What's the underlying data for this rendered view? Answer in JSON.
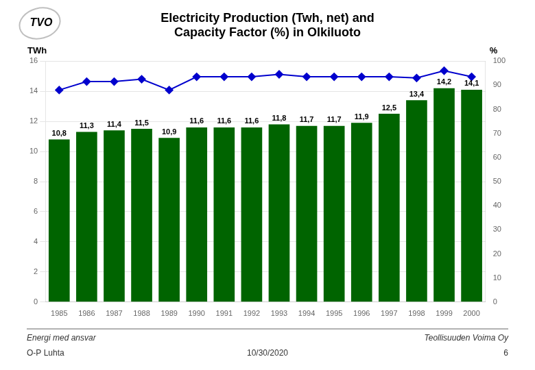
{
  "chart_data": {
    "type": "bar",
    "title": [
      "Electricity Production (Twh, net) and",
      "Capacity Factor (%) in Olkiluoto"
    ],
    "categories": [
      "1985",
      "1986",
      "1987",
      "1988",
      "1989",
      "1990",
      "1991",
      "1992",
      "1993",
      "1994",
      "1995",
      "1996",
      "1997",
      "1998",
      "1999",
      "2000"
    ],
    "y_label": "TWh",
    "y2_label": "%",
    "series": [
      {
        "type": "bar",
        "color": "#006400",
        "values": [
          10.8,
          11.3,
          11.4,
          11.5,
          10.9,
          11.6,
          11.6,
          11.6,
          11.8,
          11.7,
          11.7,
          11.9,
          12.5,
          13.4,
          14.2,
          14.1
        ],
        "value_labels": [
          "10,8",
          "11,3",
          "11,4",
          "11,5",
          "10,9",
          "11,6",
          "11,6",
          "11,6",
          "11,8",
          "11,7",
          "11,7",
          "11,9",
          "12,5",
          "13,4",
          "14,2",
          "14,1"
        ]
      },
      {
        "type": "line",
        "axis": "y2",
        "color": "#0000CD",
        "marker": "diamond",
        "line_style": "solid",
        "values": [
          88.0,
          91.5,
          91.5,
          92.5,
          88.0,
          93.5,
          93.5,
          93.5,
          94.5,
          93.5,
          93.5,
          93.5,
          93.5,
          93.0,
          96.0,
          93.5
        ]
      }
    ],
    "ylim": [
      0,
      16
    ],
    "yticks": [
      0,
      2,
      4,
      6,
      8,
      10,
      12,
      14,
      16
    ],
    "y2lim": [
      0,
      100
    ],
    "y2ticks": [
      0,
      10,
      20,
      30,
      40,
      50,
      60,
      70,
      80,
      90,
      100
    ],
    "grid": true,
    "data_labels": true,
    "annotations": [
      "TVO",
      "Energi med ansvar",
      "Teollisuuden Voima Oy",
      "O-P Luhta",
      "10/30/2020",
      "6"
    ]
  }
}
